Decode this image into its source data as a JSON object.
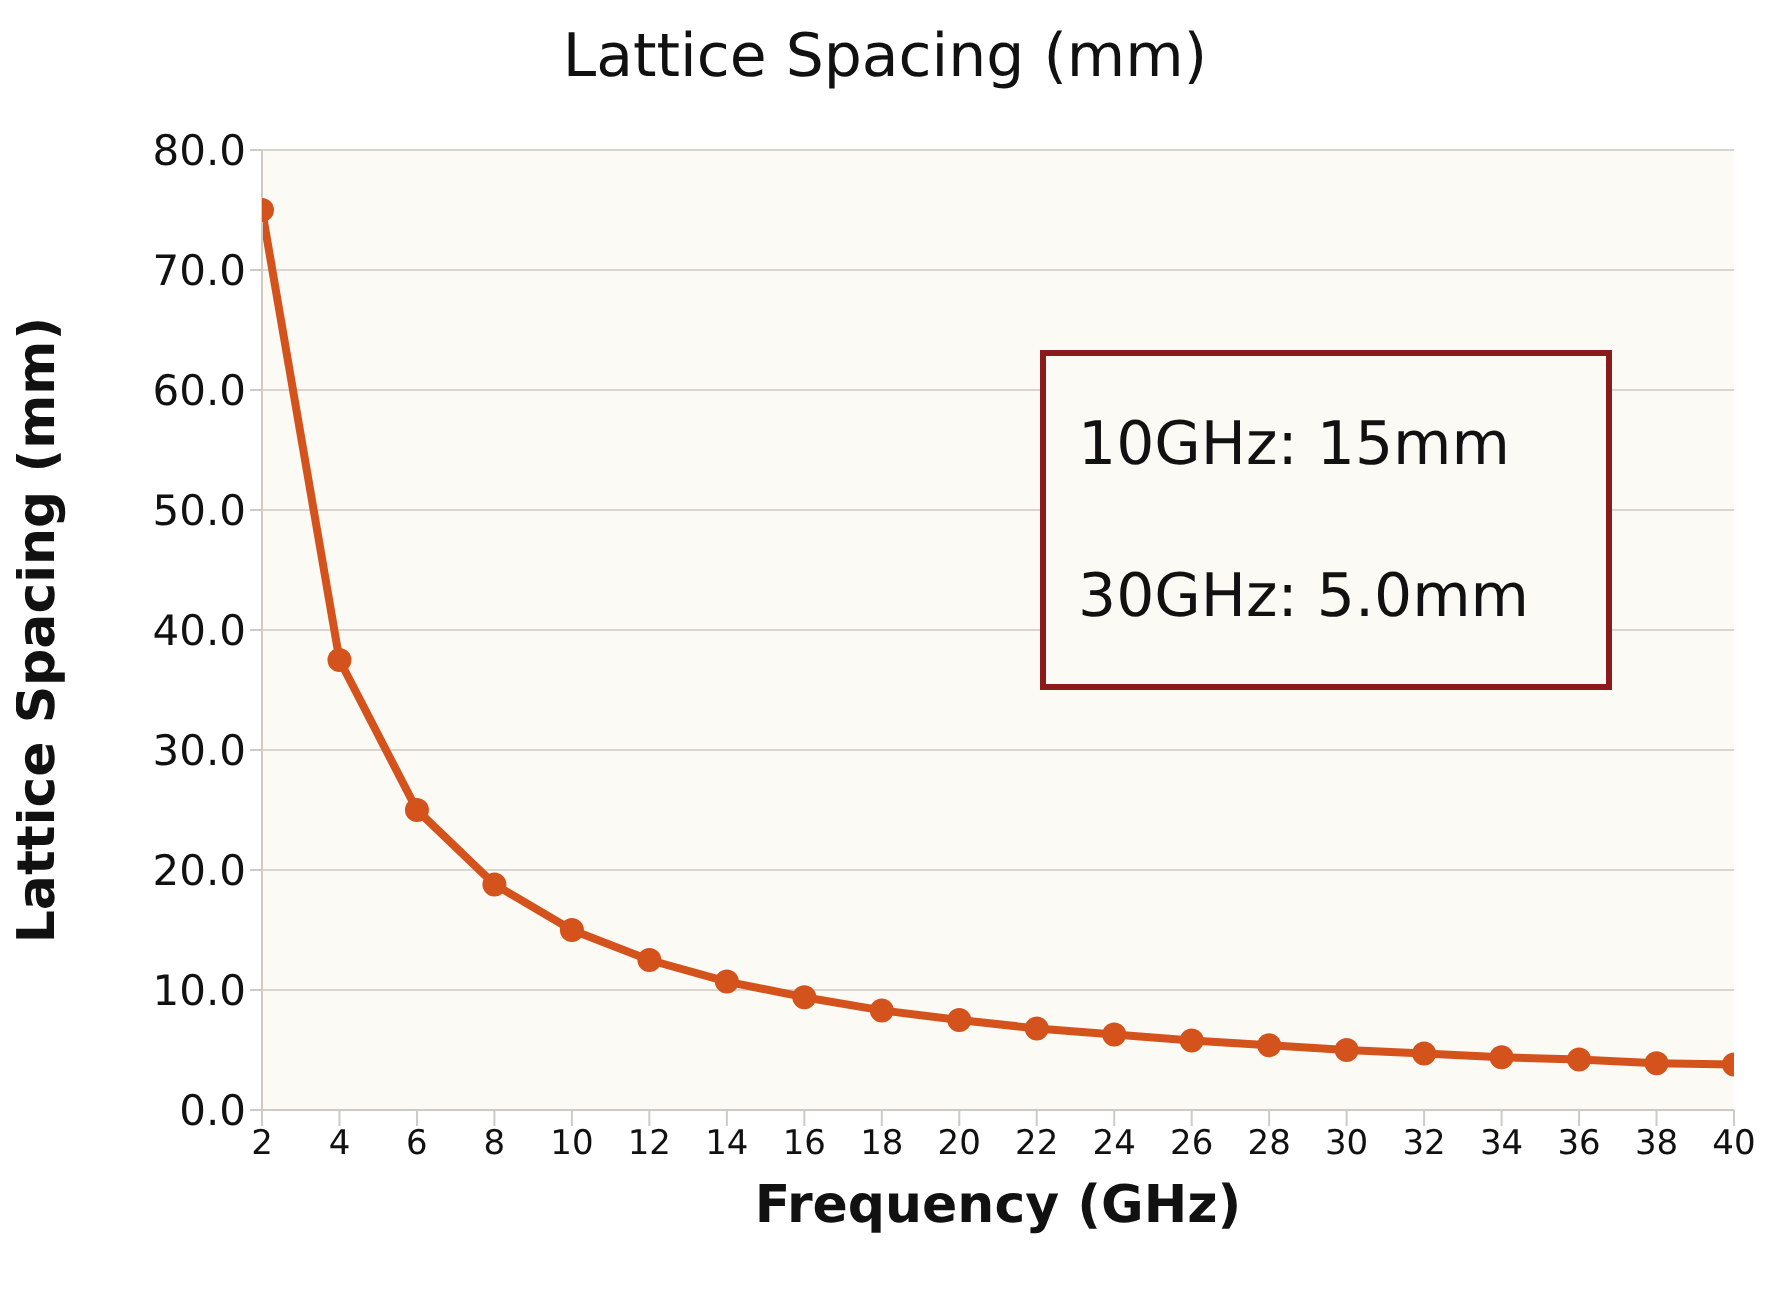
{
  "chart_data": {
    "type": "line",
    "title": "Lattice Spacing (mm)",
    "xlabel": "Frequency (GHz)",
    "ylabel": "Lattice Spacing (mm)",
    "x": [
      2,
      4,
      6,
      8,
      10,
      12,
      14,
      16,
      18,
      20,
      22,
      24,
      26,
      28,
      30,
      32,
      34,
      36,
      38,
      40
    ],
    "series": [
      {
        "color": "#d4521c",
        "values": [
          75,
          37.5,
          25,
          18.8,
          15,
          12.5,
          10.7,
          9.4,
          8.3,
          7.5,
          6.8,
          6.3,
          5.8,
          5.4,
          5.0,
          4.7,
          4.4,
          4.2,
          3.9,
          3.8
        ]
      }
    ],
    "xlim": [
      2,
      40
    ],
    "xticks": [
      2,
      4,
      6,
      8,
      10,
      12,
      14,
      16,
      18,
      20,
      22,
      24,
      26,
      28,
      30,
      32,
      34,
      36,
      38,
      40
    ],
    "ylim": [
      0,
      80
    ],
    "yticks": [
      {
        "value": 0,
        "label": "0.0"
      },
      {
        "value": 10,
        "label": "10.0"
      },
      {
        "value": 20,
        "label": "20.0"
      },
      {
        "value": 30,
        "label": "30.0"
      },
      {
        "value": 40,
        "label": "40.0"
      },
      {
        "value": 50,
        "label": "50.0"
      },
      {
        "value": 60,
        "label": "60.0"
      },
      {
        "value": 70,
        "label": "70.0"
      },
      {
        "value": 80,
        "label": "80.0"
      }
    ],
    "annotations": [
      "10GHz: 15mm",
      "30GHz: 5.0mm"
    ],
    "grid": "y",
    "marker": "circle",
    "line_style": "solid",
    "legend": false
  }
}
